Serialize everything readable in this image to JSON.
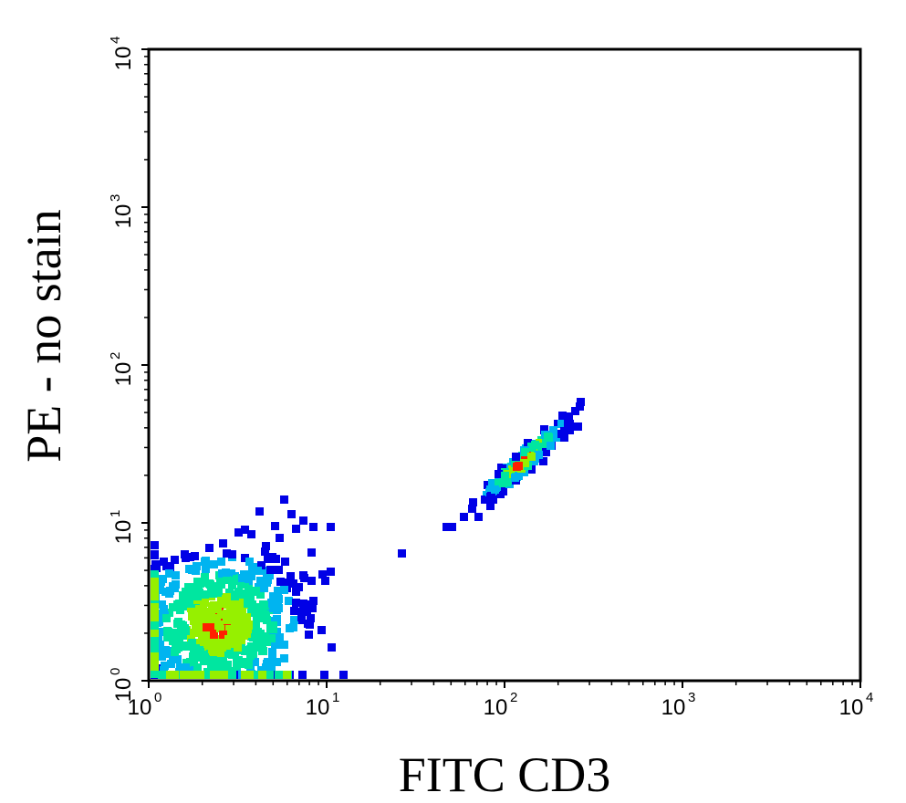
{
  "chart_data": {
    "type": "heatmap",
    "title": "",
    "xlabel": "FITC CD3",
    "ylabel": "PE - no stain",
    "xscale": "log",
    "yscale": "log",
    "xlim": [
      1,
      10000
    ],
    "ylim": [
      1,
      10000
    ],
    "x_tick_values": [
      1,
      10,
      100,
      1000,
      10000
    ],
    "y_tick_values": [
      1,
      10,
      100,
      1000,
      10000
    ],
    "x_tick_labels": [
      {
        "base": "10",
        "exp": "0"
      },
      {
        "base": "10",
        "exp": "1"
      },
      {
        "base": "10",
        "exp": "2"
      },
      {
        "base": "10",
        "exp": "3"
      },
      {
        "base": "10",
        "exp": "4"
      }
    ],
    "y_tick_labels": [
      {
        "base": "10",
        "exp": "0"
      },
      {
        "base": "10",
        "exp": "1"
      },
      {
        "base": "10",
        "exp": "2"
      },
      {
        "base": "10",
        "exp": "3"
      },
      {
        "base": "10",
        "exp": "4"
      }
    ],
    "grid": false,
    "density_colors": [
      "#0000e6",
      "#00b4f0",
      "#00e6a0",
      "#96f000",
      "#ff2000"
    ],
    "populations": [
      {
        "center_x": 2.5,
        "center_y": 2.3,
        "x_range": [
          0.9,
          11
        ],
        "y_range": [
          1.0,
          12
        ]
      },
      {
        "center_x": 130,
        "center_y": 25,
        "x_range": [
          45,
          210
        ],
        "y_range": [
          9,
          40
        ]
      }
    ]
  }
}
